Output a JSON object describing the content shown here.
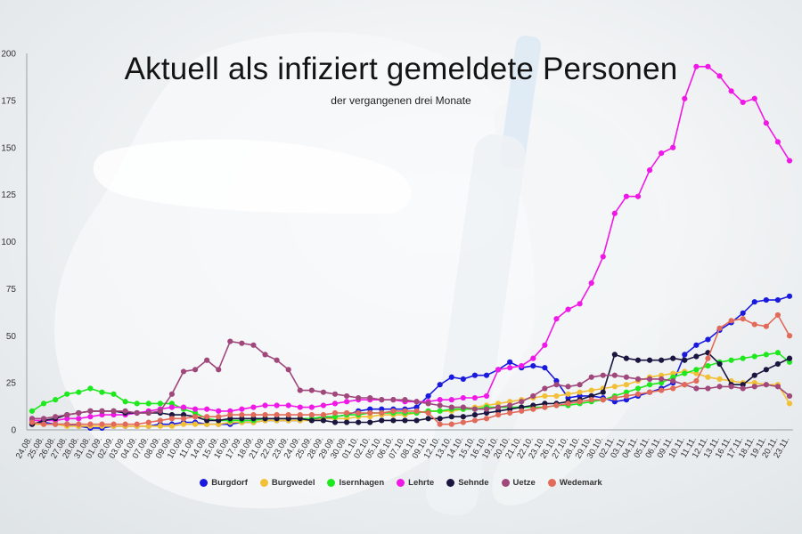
{
  "chart_data": {
    "type": "line",
    "title": "Aktuell als infiziert gemeldete Personen",
    "subtitle": "der vergangenen drei Monate",
    "xlabel": "",
    "ylabel": "",
    "ylim": [
      0,
      200
    ],
    "yticks": [
      0,
      25,
      50,
      75,
      100,
      125,
      150,
      175,
      200
    ],
    "grid": false,
    "legend": "bottom",
    "x": [
      "24.08.",
      "25.08.",
      "26.08.",
      "27.08.",
      "28.08.",
      "31.08.",
      "01.09.",
      "02.09.",
      "03.09.",
      "04.09.",
      "07.09.",
      "08.09.",
      "09.09.",
      "10.09.",
      "11.09.",
      "14.09.",
      "15.09.",
      "16.09.",
      "17.09.",
      "18.09.",
      "21.09.",
      "22.09.",
      "23.09.",
      "24.09.",
      "25.09.",
      "28.09.",
      "29.09.",
      "30.09.",
      "01.10.",
      "02.10.",
      "05.10.",
      "06.10.",
      "07.10.",
      "08.10.",
      "09.10.",
      "12.10.",
      "13.10.",
      "14.10.",
      "15.10.",
      "16.10.",
      "19.10.",
      "20.10.",
      "21.10.",
      "22.10.",
      "23.10.",
      "26.10.",
      "27.10.",
      "28.10.",
      "29.10.",
      "30.10.",
      "02.11.",
      "03.11.",
      "04.11.",
      "05.11.",
      "06.11.",
      "09.11.",
      "10.11.",
      "11.11.",
      "12.11.",
      "13.11.",
      "16.11.",
      "17.11.",
      "18.11.",
      "19.11.",
      "20.11.",
      "23.11."
    ],
    "series": [
      {
        "name": "Burgdorf",
        "color": "#1a1adf",
        "values": [
          3,
          4,
          3,
          3,
          2,
          1,
          1,
          2,
          2,
          2,
          2,
          3,
          3,
          4,
          4,
          3,
          3,
          3,
          4,
          4,
          5,
          5,
          5,
          5,
          6,
          6,
          7,
          8,
          10,
          11,
          11,
          11,
          11,
          12,
          18,
          24,
          28,
          27,
          29,
          29,
          32,
          36,
          33,
          34,
          33,
          26,
          17,
          18,
          18,
          17,
          15,
          16,
          18,
          20,
          22,
          25,
          40,
          45,
          48,
          53,
          57,
          62,
          68,
          69,
          69,
          71
        ]
      },
      {
        "name": "Burgwedel",
        "color": "#f2c036",
        "values": [
          3,
          3,
          3,
          2,
          2,
          2,
          2,
          2,
          2,
          2,
          2,
          2,
          2,
          3,
          3,
          3,
          3,
          4,
          4,
          4,
          5,
          5,
          5,
          5,
          5,
          6,
          6,
          6,
          7,
          7,
          8,
          8,
          8,
          9,
          10,
          10,
          10,
          11,
          12,
          13,
          14,
          15,
          16,
          17,
          18,
          18,
          19,
          20,
          21,
          22,
          23,
          24,
          26,
          28,
          29,
          30,
          31,
          30,
          28,
          27,
          26,
          25,
          25,
          24,
          24,
          14
        ]
      },
      {
        "name": "Isernhagen",
        "color": "#1ee81e",
        "values": [
          10,
          14,
          16,
          19,
          20,
          22,
          20,
          19,
          15,
          14,
          14,
          14,
          14,
          11,
          9,
          6,
          5,
          5,
          5,
          5,
          6,
          6,
          6,
          6,
          6,
          7,
          7,
          8,
          8,
          9,
          9,
          9,
          9,
          9,
          10,
          10,
          11,
          11,
          11,
          12,
          12,
          12,
          12,
          12,
          12,
          13,
          13,
          14,
          15,
          16,
          18,
          20,
          22,
          24,
          25,
          28,
          30,
          32,
          34,
          36,
          37,
          38,
          39,
          40,
          41,
          36
        ]
      },
      {
        "name": "Lehrte",
        "color": "#f018e6",
        "values": [
          5,
          5,
          5,
          6,
          6,
          7,
          8,
          8,
          8,
          9,
          10,
          11,
          12,
          12,
          11,
          11,
          10,
          10,
          11,
          12,
          13,
          13,
          13,
          12,
          12,
          13,
          14,
          15,
          16,
          16,
          16,
          16,
          15,
          15,
          15,
          16,
          16,
          17,
          17,
          18,
          32,
          33,
          34,
          38,
          45,
          59,
          64,
          67,
          78,
          92,
          115,
          124,
          124,
          138,
          147,
          150,
          176,
          193,
          193,
          188,
          180,
          174,
          176,
          163,
          153,
          143
        ]
      },
      {
        "name": "Sehnde",
        "color": "#1a1640",
        "values": [
          3,
          5,
          6,
          8,
          9,
          10,
          10,
          10,
          9,
          9,
          9,
          9,
          8,
          8,
          7,
          5,
          5,
          6,
          6,
          6,
          6,
          6,
          6,
          6,
          5,
          5,
          4,
          4,
          4,
          4,
          5,
          5,
          5,
          5,
          6,
          6,
          7,
          7,
          8,
          9,
          10,
          11,
          12,
          13,
          14,
          14,
          15,
          16,
          18,
          20,
          40,
          38,
          37,
          37,
          37,
          38,
          37,
          39,
          41,
          35,
          24,
          24,
          29,
          32,
          35,
          38
        ]
      },
      {
        "name": "Uetze",
        "color": "#a0487c",
        "values": [
          6,
          6,
          7,
          8,
          9,
          10,
          10,
          10,
          10,
          9,
          9,
          10,
          19,
          31,
          32,
          37,
          32,
          47,
          46,
          45,
          40,
          37,
          32,
          21,
          21,
          20,
          19,
          18,
          17,
          17,
          16,
          16,
          16,
          15,
          14,
          13,
          12,
          12,
          11,
          11,
          12,
          13,
          15,
          18,
          22,
          24,
          23,
          24,
          28,
          29,
          29,
          28,
          27,
          27,
          27,
          26,
          24,
          22,
          22,
          23,
          23,
          22,
          23,
          24,
          23,
          18
        ]
      },
      {
        "name": "Wedemark",
        "color": "#e26a5a",
        "values": [
          4,
          3,
          3,
          3,
          3,
          3,
          3,
          3,
          3,
          3,
          4,
          5,
          6,
          6,
          7,
          7,
          7,
          8,
          8,
          8,
          8,
          8,
          8,
          8,
          8,
          8,
          9,
          9,
          9,
          9,
          9,
          10,
          10,
          10,
          9,
          3,
          3,
          4,
          5,
          6,
          8,
          9,
          10,
          11,
          12,
          13,
          14,
          15,
          16,
          16,
          17,
          18,
          19,
          20,
          21,
          22,
          24,
          26,
          38,
          54,
          58,
          59,
          56,
          55,
          61,
          50
        ]
      }
    ]
  }
}
